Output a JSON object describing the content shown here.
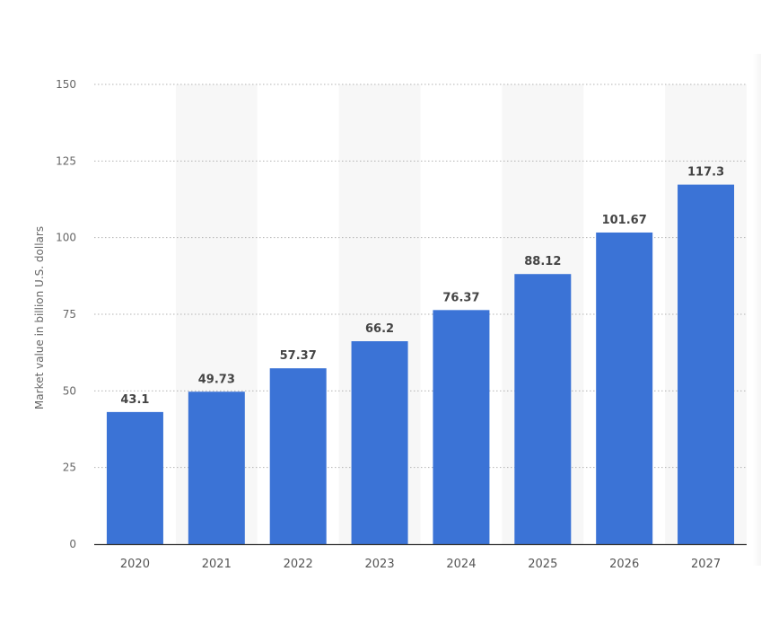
{
  "chart_data": {
    "type": "bar",
    "title": "",
    "xlabel": "",
    "ylabel": "Market value in billion U.S. dollars",
    "categories": [
      "2020",
      "2021",
      "2022",
      "2023",
      "2024",
      "2025",
      "2026",
      "2027"
    ],
    "values": [
      43.1,
      49.73,
      57.37,
      66.2,
      76.37,
      88.12,
      101.67,
      117.3
    ],
    "value_labels": [
      "43.1",
      "49.73",
      "57.37",
      "66.2",
      "76.37",
      "88.12",
      "101.67",
      "117.3"
    ],
    "ylim": [
      0,
      150
    ],
    "yticks": [
      0,
      25,
      50,
      75,
      100,
      125,
      150
    ],
    "grid": true,
    "legend": "none",
    "bar_color": "#3b73d6",
    "band_color": "#f7f7f7"
  }
}
